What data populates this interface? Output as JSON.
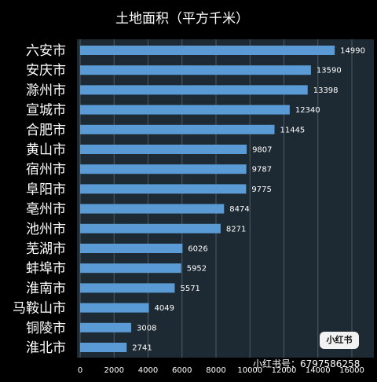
{
  "chart_data": {
    "type": "bar",
    "orientation": "horizontal",
    "title": "土地面积（平方千米）",
    "categories": [
      "六安市",
      "安庆市",
      "滁州市",
      "宣城市",
      "合肥市",
      "黄山市",
      "宿州市",
      "阜阳市",
      "亳州市",
      "池州市",
      "芜湖市",
      "蚌埠市",
      "淮南市",
      "马鞍山市",
      "铜陵市",
      "淮北市"
    ],
    "values": [
      14990,
      13590,
      13398,
      12340,
      11445,
      9807,
      9787,
      9775,
      8474,
      8271,
      6026,
      5952,
      5571,
      4049,
      3008,
      2741
    ],
    "xlim": [
      0,
      16000
    ],
    "xticks": [
      "0",
      "2000",
      "4000",
      "6000",
      "8000",
      "10000",
      "12000",
      "14000",
      "16000"
    ],
    "grid": "vertical",
    "bar_color": "#5b9bd5",
    "plot_background": "#1e2a33",
    "page_background": "#000000"
  },
  "watermark": {
    "badge": "小红书",
    "text": "小红书号：6797586258"
  }
}
